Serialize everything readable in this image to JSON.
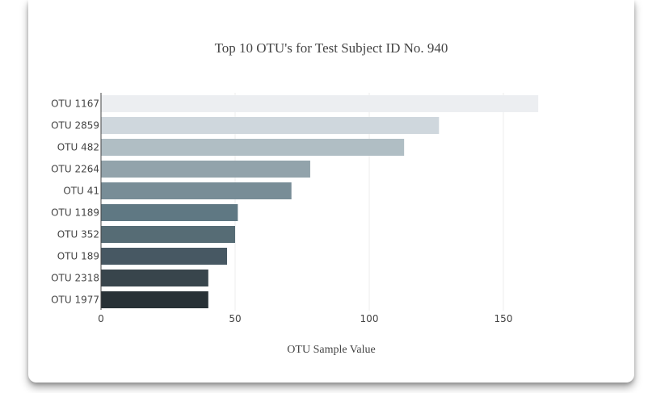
{
  "chart_data": {
    "type": "bar",
    "orientation": "horizontal",
    "title": "Top 10 OTU's for Test Subject ID No. 940",
    "xlabel": "OTU Sample Value",
    "ylabel": "",
    "xlim": [
      0,
      180
    ],
    "xticks": [
      0,
      50,
      100,
      150
    ],
    "grid": true,
    "legend": "none",
    "categories": [
      "OTU 1167",
      "OTU 2859",
      "OTU 482",
      "OTU 2264",
      "OTU 41",
      "OTU 1189",
      "OTU 352",
      "OTU 189",
      "OTU 2318",
      "OTU 1977"
    ],
    "values": [
      163,
      126,
      113,
      78,
      71,
      51,
      50,
      47,
      40,
      40
    ],
    "colors": [
      "#eceef1",
      "#cfd7dd",
      "#b0bec4",
      "#92a3ab",
      "#788d97",
      "#5f7883",
      "#566c75",
      "#475863",
      "#38454c",
      "#283136"
    ]
  }
}
